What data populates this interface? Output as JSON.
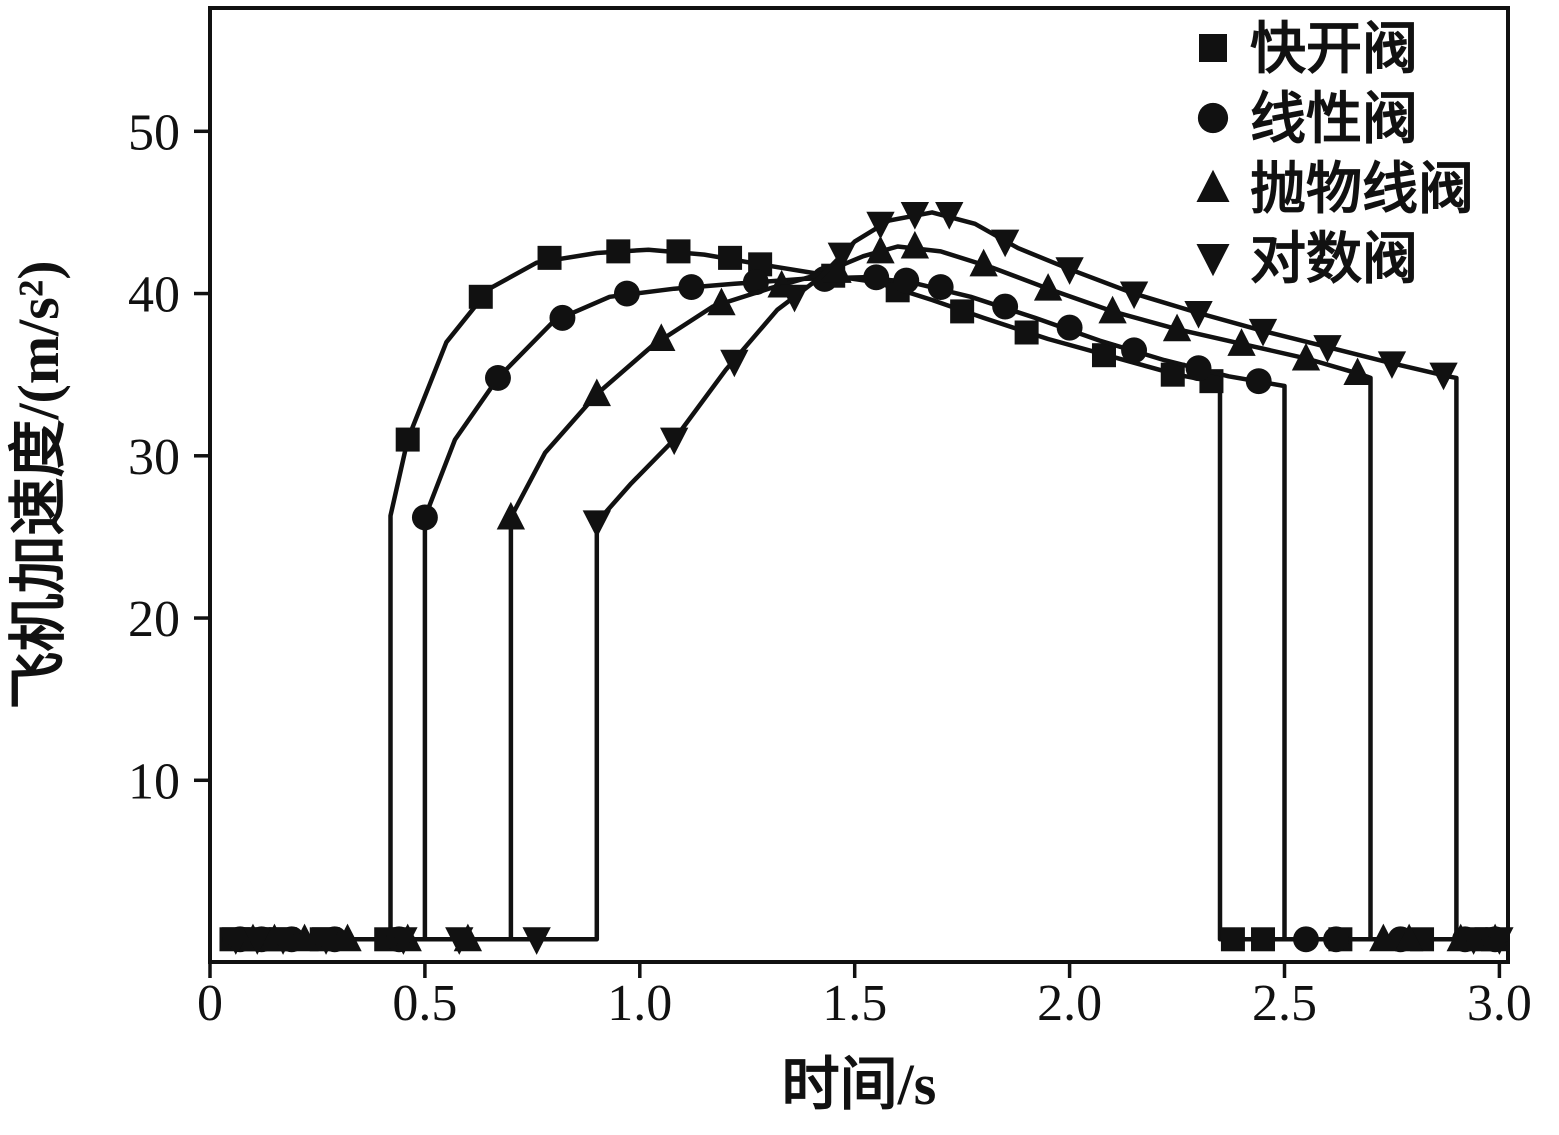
{
  "page": {
    "background": "#ffffff"
  },
  "chart_data": {
    "type": "line",
    "title": "",
    "xlabel": "时间/s",
    "ylabel": "飞机加速度/(m/s²)",
    "xlim": [
      0,
      3.02
    ],
    "ylim": [
      -1.2,
      57.6
    ],
    "grid": false,
    "legend_position": "top-right",
    "line_color": "#111111",
    "frame_color": "#111111",
    "xticks": [
      {
        "v": 0,
        "label": "0"
      },
      {
        "v": 0.5,
        "label": "0.5"
      },
      {
        "v": 1.0,
        "label": "1.0"
      },
      {
        "v": 1.5,
        "label": "1.5"
      },
      {
        "v": 2.0,
        "label": "2.0"
      },
      {
        "v": 2.5,
        "label": "2.5"
      },
      {
        "v": 3.0,
        "label": "3.0"
      }
    ],
    "yticks": [
      {
        "v": 10,
        "label": "10"
      },
      {
        "v": 20,
        "label": "20"
      },
      {
        "v": 30,
        "label": "30"
      },
      {
        "v": 40,
        "label": "40"
      },
      {
        "v": 50,
        "label": "50"
      }
    ],
    "series": [
      {
        "id": "quick-opening-valve",
        "label": "快开阀",
        "marker": "square",
        "line": [
          [
            0.03,
            0.2
          ],
          [
            0.42,
            0.2
          ],
          [
            0.42,
            26.3
          ],
          [
            0.46,
            31
          ],
          [
            0.55,
            37
          ],
          [
            0.65,
            40.3
          ],
          [
            0.76,
            41.9
          ],
          [
            0.9,
            42.5
          ],
          [
            1.02,
            42.7
          ],
          [
            1.15,
            42.4
          ],
          [
            1.28,
            41.8
          ],
          [
            1.42,
            41.2
          ],
          [
            1.55,
            40.7
          ],
          [
            1.68,
            39.6
          ],
          [
            1.8,
            38.5
          ],
          [
            1.95,
            37.2
          ],
          [
            2.1,
            36.1
          ],
          [
            2.25,
            35.0
          ],
          [
            2.35,
            34.5
          ],
          [
            2.35,
            0.2
          ],
          [
            3.0,
            0.2
          ]
        ],
        "markers": [
          [
            0.05,
            0.2
          ],
          [
            0.09,
            0.2
          ],
          [
            0.15,
            0.2
          ],
          [
            0.26,
            0.2
          ],
          [
            0.41,
            0.2
          ],
          [
            0.46,
            31
          ],
          [
            0.63,
            39.8
          ],
          [
            0.79,
            42.2
          ],
          [
            0.95,
            42.6
          ],
          [
            1.09,
            42.6
          ],
          [
            1.21,
            42.2
          ],
          [
            1.28,
            41.8
          ],
          [
            1.45,
            41.1
          ],
          [
            1.6,
            40.2
          ],
          [
            1.75,
            38.9
          ],
          [
            1.9,
            37.6
          ],
          [
            2.08,
            36.2
          ],
          [
            2.24,
            35.0
          ],
          [
            2.33,
            34.6
          ],
          [
            2.38,
            0.2
          ],
          [
            2.45,
            0.2
          ],
          [
            2.63,
            0.2
          ],
          [
            2.82,
            0.2
          ],
          [
            2.97,
            0.2
          ]
        ]
      },
      {
        "id": "linear-valve",
        "label": "线性阀",
        "marker": "circle",
        "line": [
          [
            0.03,
            0.2
          ],
          [
            0.5,
            0.2
          ],
          [
            0.5,
            26.2
          ],
          [
            0.57,
            31
          ],
          [
            0.67,
            34.8
          ],
          [
            0.8,
            38.3
          ],
          [
            0.93,
            39.8
          ],
          [
            1.08,
            40.3
          ],
          [
            1.22,
            40.6
          ],
          [
            1.38,
            40.9
          ],
          [
            1.52,
            41.0
          ],
          [
            1.63,
            40.7
          ],
          [
            1.77,
            39.8
          ],
          [
            1.92,
            38.5
          ],
          [
            2.07,
            37.1
          ],
          [
            2.22,
            35.9
          ],
          [
            2.37,
            34.9
          ],
          [
            2.5,
            34.3
          ],
          [
            2.5,
            0.2
          ],
          [
            3.0,
            0.2
          ]
        ],
        "markers": [
          [
            0.07,
            0.2
          ],
          [
            0.12,
            0.2
          ],
          [
            0.19,
            0.2
          ],
          [
            0.29,
            0.2
          ],
          [
            0.44,
            0.2
          ],
          [
            0.5,
            26.2
          ],
          [
            0.67,
            34.8
          ],
          [
            0.82,
            38.5
          ],
          [
            0.97,
            40.0
          ],
          [
            1.12,
            40.4
          ],
          [
            1.27,
            40.7
          ],
          [
            1.43,
            40.9
          ],
          [
            1.55,
            41.0
          ],
          [
            1.62,
            40.8
          ],
          [
            1.7,
            40.4
          ],
          [
            1.85,
            39.2
          ],
          [
            2.0,
            37.9
          ],
          [
            2.15,
            36.5
          ],
          [
            2.3,
            35.4
          ],
          [
            2.44,
            34.6
          ],
          [
            2.55,
            0.2
          ],
          [
            2.62,
            0.2
          ],
          [
            2.77,
            0.2
          ],
          [
            2.92,
            0.2
          ],
          [
            2.99,
            0.2
          ]
        ]
      },
      {
        "id": "parabolic-valve",
        "label": "抛物线阀",
        "marker": "triangle-up",
        "line": [
          [
            0.03,
            0.2
          ],
          [
            0.7,
            0.2
          ],
          [
            0.7,
            26.2
          ],
          [
            0.78,
            30.2
          ],
          [
            0.9,
            33.8
          ],
          [
            1.03,
            36.8
          ],
          [
            1.17,
            39.2
          ],
          [
            1.3,
            40.3
          ],
          [
            1.42,
            41.2
          ],
          [
            1.52,
            42.3
          ],
          [
            1.6,
            42.9
          ],
          [
            1.7,
            42.6
          ],
          [
            1.82,
            41.6
          ],
          [
            1.95,
            40.3
          ],
          [
            2.1,
            38.9
          ],
          [
            2.25,
            37.8
          ],
          [
            2.4,
            36.9
          ],
          [
            2.55,
            36.0
          ],
          [
            2.68,
            35.0
          ],
          [
            2.7,
            34.8
          ],
          [
            2.7,
            0.2
          ],
          [
            3.0,
            0.2
          ]
        ],
        "markers": [
          [
            0.1,
            0.2
          ],
          [
            0.15,
            0.2
          ],
          [
            0.22,
            0.2
          ],
          [
            0.32,
            0.2
          ],
          [
            0.46,
            0.2
          ],
          [
            0.6,
            0.2
          ],
          [
            0.7,
            26.2
          ],
          [
            0.9,
            33.8
          ],
          [
            1.05,
            37.2
          ],
          [
            1.19,
            39.4
          ],
          [
            1.33,
            40.5
          ],
          [
            1.46,
            41.4
          ],
          [
            1.56,
            42.6
          ],
          [
            1.64,
            42.9
          ],
          [
            1.8,
            41.8
          ],
          [
            1.95,
            40.3
          ],
          [
            2.1,
            38.9
          ],
          [
            2.25,
            37.8
          ],
          [
            2.4,
            36.9
          ],
          [
            2.55,
            36.0
          ],
          [
            2.67,
            35.1
          ],
          [
            2.73,
            0.2
          ],
          [
            2.79,
            0.2
          ],
          [
            2.91,
            0.2
          ],
          [
            2.99,
            0.2
          ]
        ]
      },
      {
        "id": "logarithmic-valve",
        "label": "对数阀",
        "marker": "triangle-down",
        "line": [
          [
            0.03,
            0.2
          ],
          [
            0.9,
            0.2
          ],
          [
            0.9,
            25.9
          ],
          [
            0.98,
            28.3
          ],
          [
            1.08,
            31.0
          ],
          [
            1.2,
            35.3
          ],
          [
            1.32,
            39.0
          ],
          [
            1.42,
            41.0
          ],
          [
            1.5,
            43.2
          ],
          [
            1.58,
            44.5
          ],
          [
            1.68,
            45.0
          ],
          [
            1.78,
            44.3
          ],
          [
            1.88,
            42.8
          ],
          [
            2.0,
            41.5
          ],
          [
            2.15,
            40.0
          ],
          [
            2.3,
            38.8
          ],
          [
            2.45,
            37.7
          ],
          [
            2.6,
            36.7
          ],
          [
            2.75,
            35.7
          ],
          [
            2.88,
            34.9
          ],
          [
            2.9,
            34.8
          ],
          [
            2.9,
            0.2
          ],
          [
            3.0,
            0.2
          ]
        ],
        "markers": [
          [
            0.06,
            0.2
          ],
          [
            0.11,
            0.2
          ],
          [
            0.17,
            0.2
          ],
          [
            0.27,
            0.2
          ],
          [
            0.45,
            0.2
          ],
          [
            0.58,
            0.2
          ],
          [
            0.76,
            0.2
          ],
          [
            0.9,
            25.9
          ],
          [
            1.08,
            31.0
          ],
          [
            1.22,
            35.8
          ],
          [
            1.36,
            39.8
          ],
          [
            1.47,
            42.4
          ],
          [
            1.56,
            44.3
          ],
          [
            1.64,
            44.9
          ],
          [
            1.72,
            44.9
          ],
          [
            1.85,
            43.2
          ],
          [
            2.0,
            41.5
          ],
          [
            2.15,
            40.0
          ],
          [
            2.3,
            38.8
          ],
          [
            2.45,
            37.7
          ],
          [
            2.6,
            36.7
          ],
          [
            2.75,
            35.7
          ],
          [
            2.87,
            35.0
          ],
          [
            2.94,
            0.2
          ],
          [
            3.0,
            0.2
          ]
        ]
      }
    ]
  }
}
